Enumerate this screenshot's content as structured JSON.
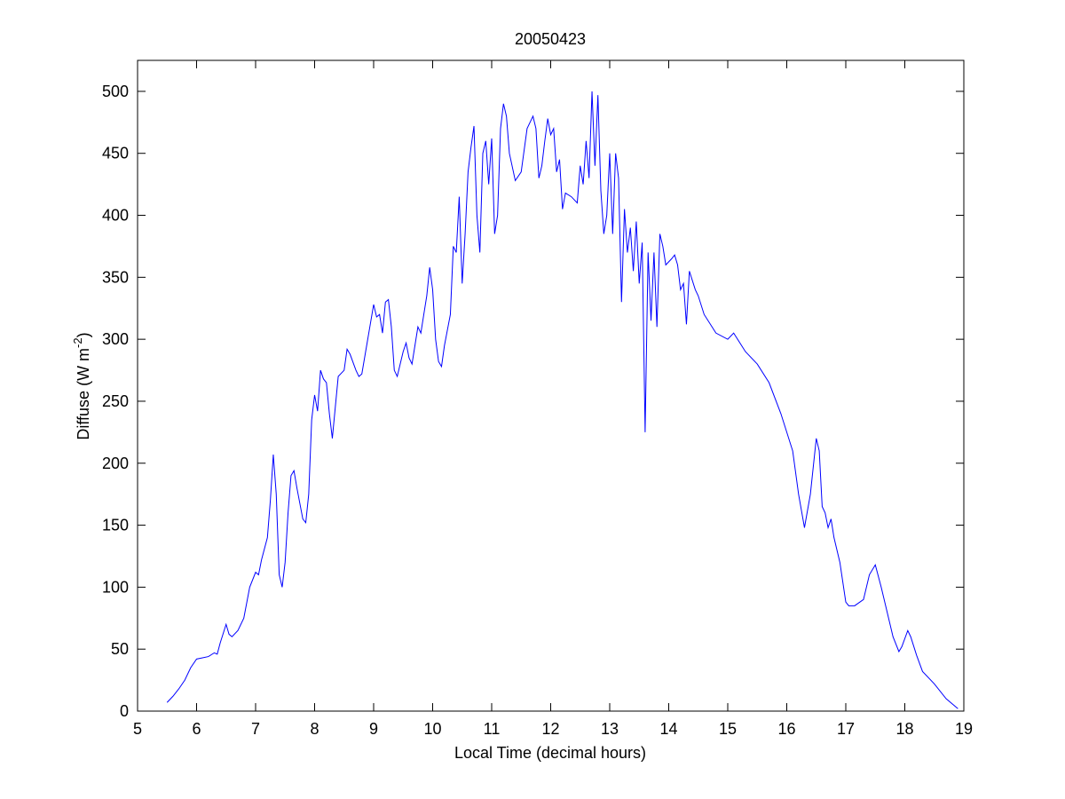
{
  "chart_data": {
    "type": "line",
    "title": "20050423",
    "xlabel": "Local Time (decimal hours)",
    "ylabel": [
      "Diffuse (W m",
      "-2",
      ")"
    ],
    "x": [
      5.5,
      5.6,
      5.7,
      5.8,
      5.9,
      6.0,
      6.1,
      6.2,
      6.3,
      6.35,
      6.4,
      6.5,
      6.55,
      6.6,
      6.7,
      6.8,
      6.9,
      7.0,
      7.05,
      7.1,
      7.2,
      7.25,
      7.3,
      7.35,
      7.4,
      7.45,
      7.5,
      7.55,
      7.6,
      7.65,
      7.7,
      7.8,
      7.85,
      7.9,
      7.95,
      8.0,
      8.05,
      8.1,
      8.15,
      8.2,
      8.25,
      8.3,
      8.35,
      8.4,
      8.5,
      8.55,
      8.6,
      8.7,
      8.75,
      8.8,
      8.9,
      9.0,
      9.05,
      9.1,
      9.15,
      9.2,
      9.25,
      9.3,
      9.35,
      9.4,
      9.5,
      9.55,
      9.6,
      9.65,
      9.7,
      9.75,
      9.8,
      9.85,
      9.9,
      9.95,
      10.0,
      10.05,
      10.1,
      10.15,
      10.2,
      10.3,
      10.35,
      10.4,
      10.45,
      10.5,
      10.55,
      10.6,
      10.65,
      10.7,
      10.75,
      10.8,
      10.85,
      10.9,
      10.95,
      11.0,
      11.05,
      11.1,
      11.15,
      11.2,
      11.25,
      11.3,
      11.4,
      11.5,
      11.6,
      11.7,
      11.75,
      11.8,
      11.85,
      11.9,
      11.95,
      12.0,
      12.05,
      12.1,
      12.15,
      12.2,
      12.25,
      12.35,
      12.45,
      12.5,
      12.55,
      12.6,
      12.65,
      12.7,
      12.75,
      12.8,
      12.85,
      12.9,
      12.95,
      13.0,
      13.05,
      13.1,
      13.15,
      13.2,
      13.25,
      13.3,
      13.35,
      13.4,
      13.45,
      13.5,
      13.55,
      13.6,
      13.65,
      13.7,
      13.75,
      13.8,
      13.85,
      13.9,
      13.95,
      14.05,
      14.1,
      14.15,
      14.2,
      14.25,
      14.3,
      14.35,
      14.45,
      14.5,
      14.6,
      14.8,
      15.0,
      15.1,
      15.3,
      15.5,
      15.7,
      15.9,
      16.1,
      16.2,
      16.3,
      16.4,
      16.5,
      16.55,
      16.6,
      16.65,
      16.7,
      16.75,
      16.8,
      16.9,
      17.0,
      17.05,
      17.15,
      17.3,
      17.4,
      17.5,
      17.6,
      17.7,
      17.8,
      17.9,
      17.95,
      18.05,
      18.1,
      18.2,
      18.3,
      18.5,
      18.7,
      18.9
    ],
    "series": [
      {
        "color": "#0000ff",
        "values": [
          7,
          12,
          18,
          25,
          35,
          42,
          43,
          44,
          47,
          46,
          55,
          70,
          62,
          60,
          65,
          75,
          100,
          112,
          110,
          122,
          140,
          170,
          207,
          175,
          110,
          100,
          120,
          160,
          190,
          194,
          180,
          155,
          152,
          175,
          235,
          255,
          242,
          275,
          268,
          265,
          240,
          220,
          245,
          270,
          275,
          292,
          288,
          275,
          270,
          272,
          300,
          328,
          318,
          320,
          305,
          330,
          332,
          310,
          275,
          270,
          290,
          297,
          285,
          280,
          295,
          310,
          305,
          320,
          335,
          358,
          340,
          300,
          282,
          278,
          295,
          320,
          375,
          370,
          415,
          345,
          385,
          435,
          455,
          472,
          400,
          370,
          450,
          460,
          425,
          462,
          385,
          400,
          470,
          490,
          480,
          450,
          428,
          435,
          470,
          480,
          470,
          430,
          440,
          460,
          478,
          465,
          470,
          435,
          445,
          405,
          418,
          415,
          410,
          440,
          425,
          460,
          430,
          500,
          440,
          497,
          420,
          385,
          400,
          450,
          385,
          450,
          430,
          330,
          405,
          370,
          390,
          355,
          395,
          345,
          378,
          225,
          370,
          315,
          370,
          310,
          385,
          375,
          360,
          365,
          368,
          360,
          340,
          345,
          312,
          355,
          340,
          335,
          320,
          305,
          300,
          305,
          290,
          280,
          265,
          240,
          210,
          175,
          148,
          175,
          220,
          210,
          165,
          160,
          148,
          155,
          140,
          120,
          88,
          85,
          85,
          90,
          110,
          118,
          100,
          80,
          60,
          48,
          52,
          65,
          60,
          45,
          32,
          22,
          10,
          2
        ]
      }
    ],
    "xlim": [
      5,
      19
    ],
    "xticks": [
      5,
      6,
      7,
      8,
      9,
      10,
      11,
      12,
      13,
      14,
      15,
      16,
      17,
      18,
      19
    ],
    "ylim": [
      0,
      525
    ],
    "yticks": [
      0,
      50,
      100,
      150,
      200,
      250,
      300,
      350,
      400,
      450,
      500
    ],
    "grid": false
  }
}
